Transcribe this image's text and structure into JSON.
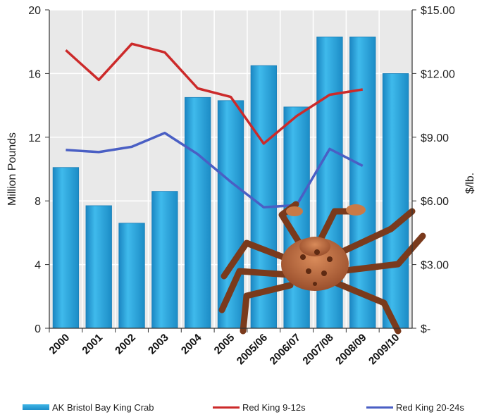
{
  "chart_data": {
    "type": "bar",
    "categories": [
      "2000",
      "2001",
      "2002",
      "2003",
      "2004",
      "2005",
      "2005/06",
      "2006/07",
      "2007/08",
      "2008/09",
      "2009/10"
    ],
    "left_axis": {
      "label": "Million Pounds",
      "ylim": [
        0,
        20
      ],
      "ticks": [
        "0",
        "4",
        "8",
        "12",
        "16",
        "20"
      ]
    },
    "right_axis": {
      "label": "$/lb.",
      "ylim": [
        0,
        15
      ],
      "ticks": [
        "$-",
        "$3.00",
        "$6.00",
        "$9.00",
        "$12.00",
        "$15.00"
      ]
    },
    "series": [
      {
        "name": "AK Bristol Bay King Crab",
        "kind": "bar",
        "axis": "left",
        "color": "#29a3dc",
        "values": [
          10.1,
          7.7,
          6.6,
          8.6,
          14.5,
          14.3,
          16.5,
          13.9,
          18.3,
          18.3,
          16.0
        ]
      },
      {
        "name": "Red King 9-12s",
        "kind": "line",
        "axis": "right",
        "color": "#cc2a2a",
        "values": [
          13.1,
          11.7,
          13.4,
          13.0,
          11.3,
          10.9,
          8.7,
          10.0,
          11.0,
          11.25,
          null
        ]
      },
      {
        "name": "Red King 20-24s",
        "kind": "line",
        "axis": "right",
        "color": "#4a5fc4",
        "values": [
          8.4,
          8.3,
          8.55,
          9.2,
          8.2,
          6.9,
          5.7,
          5.8,
          8.45,
          7.65,
          null
        ]
      }
    ],
    "grid": true,
    "legend_position": "bottom"
  },
  "image": {
    "name": "red-king-crab-illustration"
  }
}
